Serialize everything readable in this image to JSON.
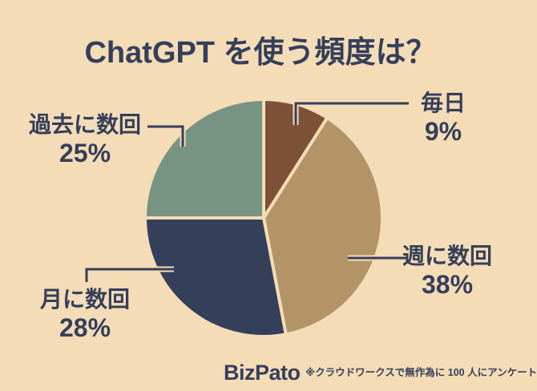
{
  "title": "ChatGPT を使う頻度は？",
  "colors": {
    "background": "#f4dcb7",
    "text": "#343f5a",
    "connector": "#343f5a",
    "slice_daily": "#7d5138",
    "slice_weekly": "#b29467",
    "slice_monthly": "#343f5a",
    "slice_past": "#779482"
  },
  "chart_data": {
    "type": "pie",
    "title": "ChatGPT を使う頻度は？",
    "categories": [
      "毎日",
      "週に数回",
      "月に数回",
      "過去に数回"
    ],
    "values": [
      9,
      38,
      28,
      25
    ],
    "unit": "%",
    "colors": [
      "#7d5138",
      "#b29467",
      "#343f5a",
      "#779482"
    ],
    "start_angle_deg": 0,
    "direction": "clockwise",
    "legend_position": "callout-labels",
    "labels": [
      {
        "name": "毎日",
        "percent": "9%"
      },
      {
        "name": "週に数回",
        "percent": "38%"
      },
      {
        "name": "月に数回",
        "percent": "28%"
      },
      {
        "name": "過去に数回",
        "percent": "25%"
      }
    ]
  },
  "footer": {
    "brand": "BizPato",
    "note": "※クラウドワークスで無作為に 100 人にアンケート"
  }
}
